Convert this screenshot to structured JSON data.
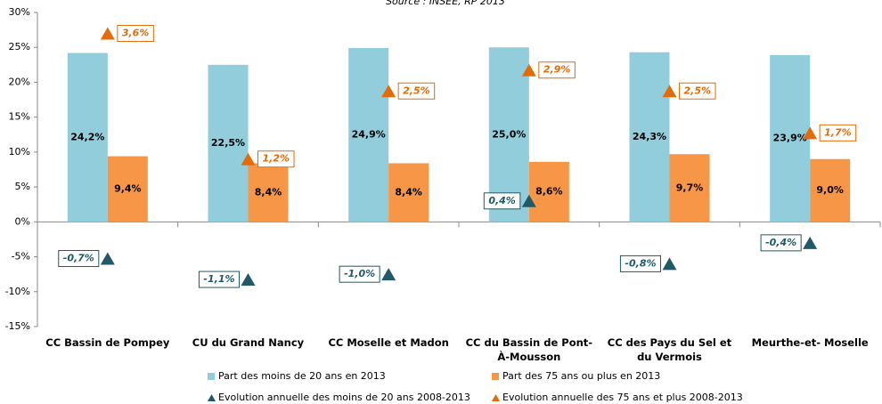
{
  "chart_data": {
    "type": "bar",
    "title": "Source : INSEE, RP 2013",
    "categories": [
      "CC Bassin de Pompey",
      "CU du Grand Nancy",
      "CC Moselle et Madon",
      "CC du Bassin de Pont-À-Mousson",
      "CC des Pays du Sel et du Vermois",
      "Meurthe-et- Moselle"
    ],
    "ylim": [
      -15,
      30
    ],
    "yticks": [
      {
        "value": -15,
        "label": "-15%"
      },
      {
        "value": -10,
        "label": "-10%"
      },
      {
        "value": -5,
        "label": "-5%"
      },
      {
        "value": 0,
        "label": "0%"
      },
      {
        "value": 5,
        "label": "5%"
      },
      {
        "value": 10,
        "label": "10%"
      },
      {
        "value": 15,
        "label": "15%"
      },
      {
        "value": 20,
        "label": "20%"
      },
      {
        "value": 25,
        "label": "25%"
      },
      {
        "value": 30,
        "label": "30%"
      }
    ],
    "y2lim": [
      -2,
      4
    ],
    "grid": false,
    "series": [
      {
        "name": "Part des moins de 20 ans en 2013",
        "type": "bar",
        "color": "#92cddc",
        "values": [
          24.2,
          22.5,
          24.9,
          25.0,
          24.3,
          23.9
        ],
        "value_labels": [
          "24,2%",
          "22,5%",
          "24,9%",
          "25,0%",
          "24,3%",
          "23,9%"
        ]
      },
      {
        "name": "Part des 75 ans ou plus en 2013",
        "type": "bar",
        "color": "#f79646",
        "values": [
          9.4,
          8.4,
          8.4,
          8.6,
          9.7,
          9.0
        ],
        "value_labels": [
          "9,4%",
          "8,4%",
          "8,4%",
          "8,6%",
          "9,7%",
          "9,0%"
        ]
      },
      {
        "name": "Evolution annuelle des moins de 20 ans 2008-2013",
        "type": "marker",
        "axis": "y2",
        "color": "#215968",
        "values": [
          -0.7,
          -1.1,
          -1.0,
          0.4,
          -0.8,
          -0.4
        ],
        "value_labels": [
          "-0,7%",
          "-1,1%",
          "-1,0%",
          "0,4%",
          "-0,8%",
          "-0,4%"
        ]
      },
      {
        "name": "Evolution annuelle des 75 ans et plus 2008-2013",
        "type": "marker",
        "axis": "y2",
        "color": "#e36c09",
        "values": [
          3.6,
          1.2,
          2.5,
          2.9,
          2.5,
          1.7
        ],
        "value_labels": [
          "3,6%",
          "1,2%",
          "2,5%",
          "2,9%",
          "2,5%",
          "1,7%"
        ]
      }
    ]
  }
}
